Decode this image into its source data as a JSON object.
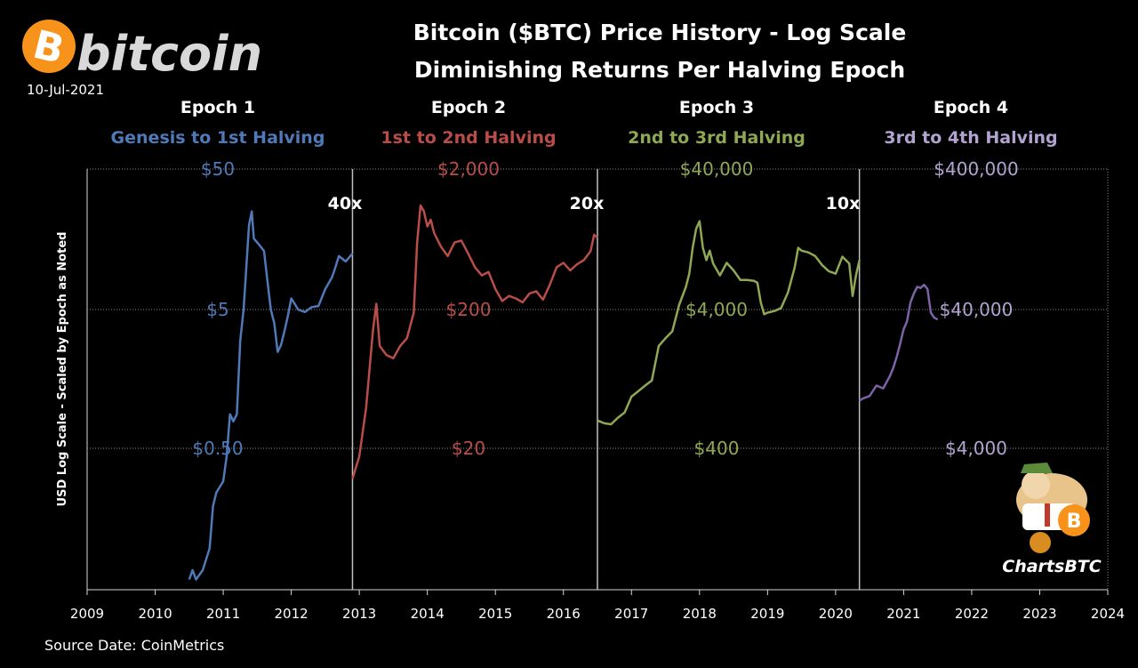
{
  "header": {
    "logo_word": "bitcoin",
    "date": "10-Jul-2021",
    "title_line1": "Bitcoin ($BTC) Price History - Log Scale",
    "title_line2": "Diminishing Returns Per Halving Epoch"
  },
  "footer": {
    "source": "Source Date: CoinMetrics"
  },
  "badge": {
    "label": "ChartsBTC"
  },
  "colors": {
    "epoch1": "#4f79b7",
    "epoch2": "#b94d4a",
    "epoch3": "#8fa853",
    "epoch4": "#7c62a6",
    "epoch4_label": "#b3a3d1",
    "grid": "#8c8c8c",
    "divider": "#bfbfbf"
  },
  "chart_data": {
    "type": "line",
    "ylabel": "USD  Log Scale - Scaled by Epoch as Noted",
    "xlim": [
      2009,
      2024
    ],
    "x_ticks": [
      "2009",
      "2010",
      "2011",
      "2012",
      "2013",
      "2014",
      "2015",
      "2016",
      "2017",
      "2018",
      "2019",
      "2020",
      "2021",
      "2022",
      "2023",
      "2024"
    ],
    "log_scale": true,
    "grid": true,
    "epoch_boundaries": [
      2012.9,
      2016.5,
      2020.35
    ],
    "epochs": [
      {
        "name": "Epoch 1",
        "subtitle": "Genesis to 1st Halving",
        "multiplier": "40x",
        "levels": [
          "$50",
          "$5",
          "$0.50"
        ],
        "level_values": [
          50,
          5,
          0.5
        ],
        "series": {
          "x": [
            2010.5,
            2010.55,
            2010.6,
            2010.7,
            2010.8,
            2010.85,
            2010.9,
            2011.0,
            2011.05,
            2011.1,
            2011.15,
            2011.2,
            2011.25,
            2011.3,
            2011.38,
            2011.42,
            2011.45,
            2011.5,
            2011.55,
            2011.6,
            2011.65,
            2011.7,
            2011.75,
            2011.8,
            2011.85,
            2011.9,
            2011.95,
            2012.0,
            2012.05,
            2012.1,
            2012.2,
            2012.3,
            2012.4,
            2012.5,
            2012.6,
            2012.65,
            2012.7,
            2012.8,
            2012.9
          ],
          "y": [
            0.06,
            0.07,
            0.06,
            0.07,
            0.1,
            0.2,
            0.25,
            0.3,
            0.45,
            0.9,
            0.8,
            0.9,
            3.0,
            5.0,
            20.0,
            25.0,
            16.0,
            15.0,
            14.0,
            13.0,
            8.0,
            5.0,
            4.0,
            2.5,
            2.8,
            3.5,
            4.5,
            6.0,
            5.5,
            5.0,
            4.8,
            5.2,
            5.3,
            7.0,
            8.5,
            10.0,
            12.0,
            11.0,
            12.5
          ]
        }
      },
      {
        "name": "Epoch 2",
        "subtitle": "1st  to 2nd Halving",
        "multiplier": "20x",
        "levels": [
          "$2,000",
          "$200",
          "$20"
        ],
        "level_values": [
          2000,
          200,
          20
        ],
        "series": {
          "x": [
            2012.9,
            2013.0,
            2013.1,
            2013.2,
            2013.25,
            2013.3,
            2013.4,
            2013.5,
            2013.6,
            2013.7,
            2013.8,
            2013.85,
            2013.9,
            2013.95,
            2014.0,
            2014.05,
            2014.1,
            2014.2,
            2014.3,
            2014.4,
            2014.5,
            2014.6,
            2014.7,
            2014.8,
            2014.9,
            2015.0,
            2015.1,
            2015.2,
            2015.3,
            2015.4,
            2015.5,
            2015.6,
            2015.7,
            2015.8,
            2015.9,
            2016.0,
            2016.1,
            2016.2,
            2016.3,
            2016.4,
            2016.45,
            2016.5
          ],
          "y": [
            12.5,
            18.0,
            40.0,
            140.0,
            220.0,
            110.0,
            95.0,
            90.0,
            110.0,
            125.0,
            190.0,
            600.0,
            1100.0,
            1000.0,
            780.0,
            870.0,
            700.0,
            560.0,
            480.0,
            600.0,
            620.0,
            500.0,
            400.0,
            350.0,
            370.0,
            280.0,
            230.0,
            250.0,
            240.0,
            225.0,
            260.0,
            270.0,
            235.0,
            300.0,
            400.0,
            430.0,
            380.0,
            420.0,
            450.0,
            520.0,
            680.0,
            650.0
          ]
        }
      },
      {
        "name": "Epoch 3",
        "subtitle": "2nd to 3rd Halving",
        "multiplier": "10x",
        "levels": [
          "$40,000",
          "$4,000",
          "$400"
        ],
        "level_values": [
          40000,
          4000,
          400
        ],
        "series": {
          "x": [
            2016.5,
            2016.6,
            2016.7,
            2016.8,
            2016.9,
            2017.0,
            2017.1,
            2017.2,
            2017.3,
            2017.4,
            2017.5,
            2017.6,
            2017.7,
            2017.8,
            2017.85,
            2017.9,
            2017.95,
            2018.0,
            2018.05,
            2018.1,
            2018.15,
            2018.2,
            2018.3,
            2018.4,
            2018.5,
            2018.6,
            2018.7,
            2018.8,
            2018.85,
            2018.9,
            2018.95,
            2019.0,
            2019.1,
            2019.2,
            2019.3,
            2019.4,
            2019.45,
            2019.5,
            2019.6,
            2019.7,
            2019.8,
            2019.9,
            2020.0,
            2020.1,
            2020.2,
            2020.25,
            2020.3,
            2020.35
          ],
          "y": [
            650.0,
            620.0,
            610.0,
            680.0,
            740.0,
            960.0,
            1050.0,
            1150.0,
            1250.0,
            2200.0,
            2500.0,
            2800.0,
            4300.0,
            5800.0,
            7200.0,
            11000.0,
            15000.0,
            17000.0,
            11000.0,
            9000.0,
            10500.0,
            8500.0,
            7000.0,
            8600.0,
            7600.0,
            6500.0,
            6500.0,
            6400.0,
            6200.0,
            4500.0,
            3700.0,
            3800.0,
            3900.0,
            4100.0,
            5300.0,
            8000.0,
            11000.0,
            10500.0,
            10200.0,
            9600.0,
            8300.0,
            7500.0,
            7200.0,
            9500.0,
            8500.0,
            5000.0,
            7000.0,
            9000.0
          ]
        }
      },
      {
        "name": "Epoch 4",
        "subtitle": "3rd to 4th Halving",
        "multiplier": "",
        "levels": [
          "$400,000",
          "$40,000",
          "$4,000"
        ],
        "level_values": [
          400000,
          40000,
          4000
        ],
        "series": {
          "x": [
            2020.35,
            2020.4,
            2020.5,
            2020.6,
            2020.7,
            2020.8,
            2020.85,
            2020.9,
            2020.95,
            2021.0,
            2021.05,
            2021.1,
            2021.15,
            2021.2,
            2021.25,
            2021.3,
            2021.35,
            2021.4,
            2021.45,
            2021.5
          ],
          "y": [
            9000.0,
            9300.0,
            9700.0,
            11500.0,
            11000.0,
            13500.0,
            15500.0,
            18500.0,
            23000.0,
            29000.0,
            33000.0,
            45000.0,
            52000.0,
            58000.0,
            57000.0,
            60000.0,
            56000.0,
            38000.0,
            35000.0,
            34000.0
          ]
        }
      }
    ]
  }
}
